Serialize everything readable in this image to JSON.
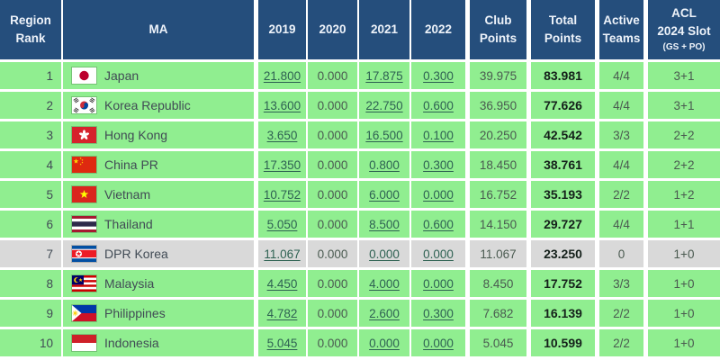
{
  "colors": {
    "header_bg": "#254e7c",
    "header_text": "#eef3fa",
    "row_green": "#90ee90",
    "row_gray": "#d9d9d9",
    "text_dark": "#414b55",
    "value_text": "#4a5a50",
    "link": "#2e6152",
    "total_text": "#14201a",
    "border": "#ffffff"
  },
  "table": {
    "columns": [
      {
        "label": "Region\nRank"
      },
      {
        "label": "MA"
      },
      {
        "label": "2019"
      },
      {
        "label": "2020"
      },
      {
        "label": "2021"
      },
      {
        "label": "2022"
      },
      {
        "label": "Club\nPoints"
      },
      {
        "label": "Total\nPoints"
      },
      {
        "label": "Active\nTeams"
      },
      {
        "label": "ACL\n2024 Slot",
        "sublabel": "(GS + PO)"
      }
    ],
    "rows": [
      {
        "rank": "1",
        "flag": "japan-flag",
        "country": "Japan",
        "y2019": "21.800",
        "y2020": "0.000",
        "y2021": "17.875",
        "y2022": "0.300",
        "club": "39.975",
        "total": "83.981",
        "active": "4/4",
        "acl": "3+1",
        "highlight": false
      },
      {
        "rank": "2",
        "flag": "korea-republic-flag",
        "country": "Korea Republic",
        "y2019": "13.600",
        "y2020": "0.000",
        "y2021": "22.750",
        "y2022": "0.600",
        "club": "36.950",
        "total": "77.626",
        "active": "4/4",
        "acl": "3+1",
        "highlight": false
      },
      {
        "rank": "3",
        "flag": "hong-kong-flag",
        "country": "Hong Kong",
        "y2019": "3.650",
        "y2020": "0.000",
        "y2021": "16.500",
        "y2022": "0.100",
        "club": "20.250",
        "total": "42.542",
        "active": "3/3",
        "acl": "2+2",
        "highlight": false
      },
      {
        "rank": "4",
        "flag": "china-pr-flag",
        "country": "China PR",
        "y2019": "17.350",
        "y2020": "0.000",
        "y2021": "0.800",
        "y2022": "0.300",
        "club": "18.450",
        "total": "38.761",
        "active": "4/4",
        "acl": "2+2",
        "highlight": false
      },
      {
        "rank": "5",
        "flag": "vietnam-flag",
        "country": "Vietnam",
        "y2019": "10.752",
        "y2020": "0.000",
        "y2021": "6.000",
        "y2022": "0.000",
        "club": "16.752",
        "total": "35.193",
        "active": "2/2",
        "acl": "1+2",
        "highlight": false
      },
      {
        "rank": "6",
        "flag": "thailand-flag",
        "country": "Thailand",
        "y2019": "5.050",
        "y2020": "0.000",
        "y2021": "8.500",
        "y2022": "0.600",
        "club": "14.150",
        "total": "29.727",
        "active": "4/4",
        "acl": "1+1",
        "highlight": false
      },
      {
        "rank": "7",
        "flag": "dpr-korea-flag",
        "country": "DPR Korea",
        "y2019": "11.067",
        "y2020": "0.000",
        "y2021": "0.000",
        "y2022": "0.000",
        "club": "11.067",
        "total": "23.250",
        "active": "0",
        "acl": "1+0",
        "highlight": true
      },
      {
        "rank": "8",
        "flag": "malaysia-flag",
        "country": "Malaysia",
        "y2019": "4.450",
        "y2020": "0.000",
        "y2021": "4.000",
        "y2022": "0.000",
        "club": "8.450",
        "total": "17.752",
        "active": "3/3",
        "acl": "1+0",
        "highlight": false
      },
      {
        "rank": "9",
        "flag": "philippines-flag",
        "country": "Philippines",
        "y2019": "4.782",
        "y2020": "0.000",
        "y2021": "2.600",
        "y2022": "0.300",
        "club": "7.682",
        "total": "16.139",
        "active": "2/2",
        "acl": "1+0",
        "highlight": false
      },
      {
        "rank": "10",
        "flag": "indonesia-flag",
        "country": "Indonesia",
        "y2019": "5.045",
        "y2020": "0.000",
        "y2021": "0.000",
        "y2022": "0.000",
        "club": "5.045",
        "total": "10.599",
        "active": "2/2",
        "acl": "1+0",
        "highlight": false
      }
    ]
  }
}
